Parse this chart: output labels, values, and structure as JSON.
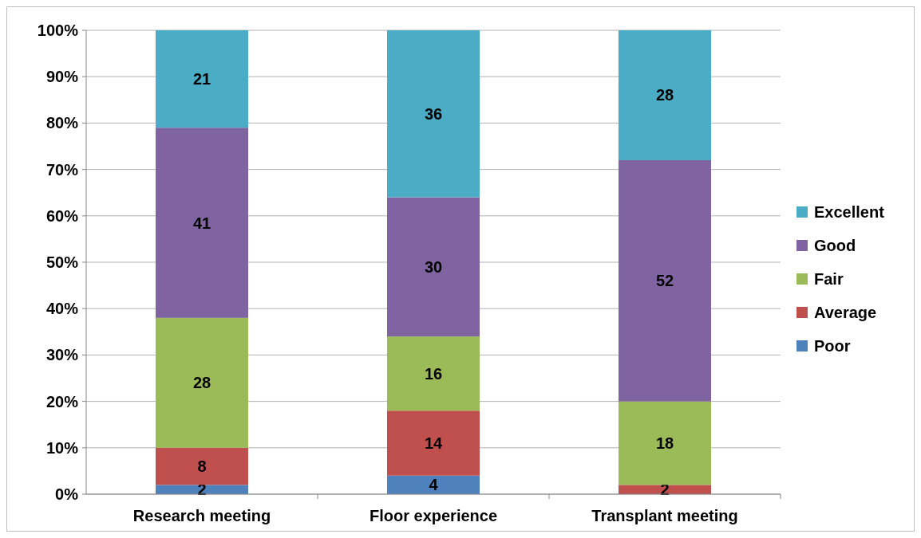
{
  "chart_data": {
    "type": "bar",
    "stacked": true,
    "categories": [
      "Research meeting",
      "Floor experience",
      "Transplant meeting"
    ],
    "series": [
      {
        "name": "Poor",
        "color": "#4f81bd",
        "values": [
          2,
          4,
          0
        ],
        "value_labels": [
          "2",
          "4",
          null
        ]
      },
      {
        "name": "Average",
        "color": "#c0504d",
        "values": [
          8,
          14,
          2
        ],
        "value_labels": [
          "8",
          "14",
          "2"
        ]
      },
      {
        "name": "Fair",
        "color": "#9bbb59",
        "values": [
          28,
          16,
          18
        ],
        "value_labels": [
          "28",
          "16",
          "18"
        ]
      },
      {
        "name": "Good",
        "color": "#8064a2",
        "values": [
          41,
          30,
          52
        ],
        "value_labels": [
          "41",
          "30",
          "52"
        ]
      },
      {
        "name": "Excellent",
        "color": "#4bacc6",
        "values": [
          21,
          36,
          28
        ],
        "value_labels": [
          "21",
          "36",
          "28"
        ]
      }
    ],
    "ylim": [
      0,
      100
    ],
    "yticks": [
      {
        "value": 0,
        "label": "0%"
      },
      {
        "value": 10,
        "label": "10%"
      },
      {
        "value": 20,
        "label": "20%"
      },
      {
        "value": 30,
        "label": "30%"
      },
      {
        "value": 40,
        "label": "40%"
      },
      {
        "value": 50,
        "label": "50%"
      },
      {
        "value": 60,
        "label": "60%"
      },
      {
        "value": 70,
        "label": "70%"
      },
      {
        "value": 80,
        "label": "80%"
      },
      {
        "value": 90,
        "label": "90%"
      },
      {
        "value": 100,
        "label": "100%"
      }
    ],
    "grid": "y",
    "legend": "right"
  }
}
